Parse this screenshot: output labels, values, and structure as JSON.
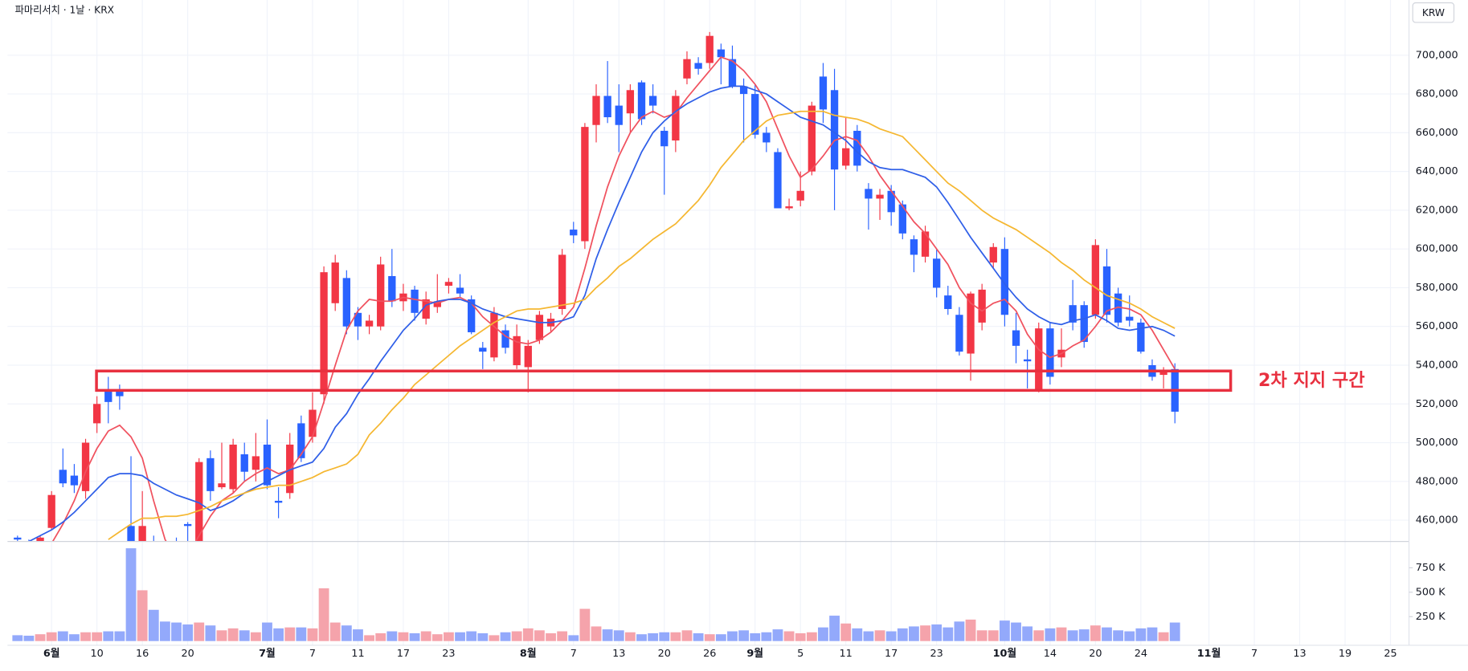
{
  "header": {
    "title": "파마리서치 · 1날 · KRX",
    "currency": "KRW"
  },
  "chart_data": {
    "type": "candlestick",
    "categories": [
      null,
      null,
      null,
      "6월",
      null,
      null,
      null,
      "10",
      null,
      null,
      null,
      "16",
      null,
      null,
      null,
      "20",
      null,
      null,
      null,
      null,
      null,
      null,
      "7월",
      null,
      null,
      null,
      "7",
      null,
      null,
      null,
      "11",
      null,
      null,
      null,
      "17",
      null,
      null,
      null,
      "23",
      null,
      null,
      null,
      null,
      null,
      null,
      "8월",
      null,
      null,
      null,
      "7",
      null,
      null,
      null,
      "13",
      null,
      null,
      null,
      "20",
      null,
      null,
      null,
      "26",
      null,
      null,
      null,
      "9월",
      null,
      null,
      null,
      "5",
      null,
      null,
      null,
      "11",
      null,
      null,
      null,
      "17",
      null,
      null,
      null,
      "23",
      null,
      null,
      null,
      null,
      null,
      "10월",
      null,
      null,
      null,
      "14",
      null,
      null,
      null,
      "20",
      null,
      null,
      null,
      "24",
      null,
      null,
      null,
      null,
      null,
      "11월",
      null,
      null,
      null,
      "7",
      null,
      null,
      null,
      "13",
      null,
      null,
      null,
      "19",
      null,
      null,
      null,
      "25"
    ],
    "open": [
      451000,
      449000,
      449000,
      456000,
      486000,
      483000,
      475000,
      510000,
      527000,
      527000,
      457000,
      445000,
      448000,
      440000,
      449000,
      458000,
      449000,
      492000,
      477000,
      476000,
      494000,
      486000,
      499000,
      470000,
      474000,
      510000,
      503000,
      525000,
      572000,
      585000,
      567000,
      560000,
      560000,
      586000,
      573000,
      579000,
      564000,
      570000,
      581000,
      580000,
      574000,
      549000,
      544000,
      558000,
      540000,
      539000,
      553000,
      560000,
      569000,
      610000,
      604000,
      664000,
      679000,
      674000,
      670000,
      686000,
      679000,
      661000,
      656000,
      688000,
      696000,
      696000,
      703000,
      698000,
      684000,
      680000,
      660000,
      650000,
      621000,
      625000,
      640000,
      689000,
      682000,
      643000,
      661000,
      631000,
      626000,
      630000,
      623000,
      605000,
      596000,
      595000,
      576000,
      566000,
      546000,
      562000,
      593000,
      600000,
      558000,
      543000,
      527000,
      559000,
      544000,
      571000,
      571000,
      566000,
      591000,
      577000,
      565000,
      562000,
      540000,
      535000,
      538000,
      null,
      null,
      null,
      null,
      null,
      null,
      null,
      null,
      null,
      null,
      null,
      null,
      null,
      null,
      null,
      null,
      null,
      null,
      null
    ],
    "high": [
      452000,
      450000,
      452000,
      475000,
      497000,
      489000,
      502000,
      524000,
      534000,
      530000,
      493000,
      475000,
      452000,
      447000,
      451000,
      459000,
      492000,
      496000,
      500000,
      502000,
      500000,
      505000,
      512000,
      477000,
      505000,
      514000,
      526000,
      591000,
      597000,
      589000,
      570000,
      566000,
      596000,
      600000,
      582000,
      581000,
      578000,
      587000,
      585000,
      587000,
      576000,
      552000,
      570000,
      561000,
      561000,
      553000,
      568000,
      567000,
      600000,
      614000,
      665000,
      685000,
      697000,
      685000,
      685000,
      687000,
      685000,
      663000,
      682000,
      702000,
      699000,
      712000,
      706000,
      705000,
      688000,
      685000,
      663000,
      652000,
      626000,
      640000,
      676000,
      696000,
      693000,
      668000,
      664000,
      634000,
      631000,
      633000,
      625000,
      607000,
      612000,
      600000,
      581000,
      570000,
      578000,
      582000,
      603000,
      606000,
      567000,
      548000,
      562000,
      562000,
      559000,
      584000,
      573000,
      605000,
      600000,
      580000,
      576000,
      564000,
      543000,
      539000,
      541000,
      null,
      null,
      null,
      null,
      null,
      null,
      null,
      null,
      null,
      null,
      null,
      null,
      null,
      null,
      null,
      null,
      null,
      null,
      null
    ],
    "low": [
      448000,
      446000,
      448000,
      455000,
      477000,
      474000,
      471000,
      505000,
      510000,
      517000,
      435000,
      440000,
      435000,
      432000,
      440000,
      445000,
      445000,
      470000,
      476000,
      474000,
      480000,
      480000,
      476000,
      461000,
      471000,
      490000,
      500000,
      520000,
      568000,
      556000,
      553000,
      556000,
      558000,
      570000,
      568000,
      563000,
      561000,
      567000,
      577000,
      575000,
      556000,
      538000,
      542000,
      546000,
      538000,
      526000,
      551000,
      557000,
      566000,
      603000,
      600000,
      655000,
      665000,
      650000,
      660000,
      664000,
      670000,
      628000,
      650000,
      685000,
      690000,
      693000,
      685000,
      683000,
      655000,
      657000,
      650000,
      621000,
      620000,
      622000,
      638000,
      665000,
      620000,
      641000,
      640000,
      610000,
      615000,
      612000,
      605000,
      588000,
      593000,
      575000,
      566000,
      545000,
      532000,
      558000,
      590000,
      560000,
      541000,
      528000,
      526000,
      530000,
      539000,
      558000,
      549000,
      564000,
      562000,
      560000,
      560000,
      546000,
      532000,
      528000,
      510000,
      null,
      null,
      null,
      null,
      null,
      null,
      null,
      null,
      null,
      null,
      null,
      null,
      null,
      null,
      null,
      null,
      null,
      null,
      null
    ],
    "close": [
      450000,
      448000,
      451000,
      473000,
      479000,
      478000,
      500000,
      520000,
      521000,
      524000,
      440000,
      457000,
      440000,
      435000,
      446000,
      457000,
      490000,
      475000,
      479000,
      499000,
      485000,
      493000,
      478000,
      469000,
      499000,
      492000,
      517000,
      588000,
      593000,
      560000,
      560000,
      563000,
      592000,
      573000,
      577000,
      567000,
      574000,
      573000,
      583000,
      577000,
      557000,
      547000,
      567000,
      549000,
      555000,
      550000,
      566000,
      564000,
      597000,
      607000,
      663000,
      679000,
      668000,
      664000,
      682000,
      667000,
      674000,
      653000,
      679000,
      698000,
      693000,
      710000,
      699000,
      684000,
      680000,
      659000,
      655000,
      621000,
      622000,
      630000,
      674000,
      672000,
      641000,
      652000,
      643000,
      626000,
      628000,
      619000,
      608000,
      597000,
      609000,
      580000,
      569000,
      547000,
      577000,
      579000,
      601000,
      566000,
      550000,
      542000,
      559000,
      534000,
      548000,
      562000,
      552000,
      602000,
      566000,
      562000,
      563000,
      547000,
      534000,
      537000,
      516000,
      null,
      null,
      null,
      null,
      null,
      null,
      null,
      null,
      null,
      null,
      null,
      null,
      null,
      null,
      null,
      null,
      null,
      null,
      null
    ],
    "volume": [
      60000,
      55000,
      70000,
      90000,
      100000,
      70000,
      90000,
      90000,
      100000,
      100000,
      950000,
      520000,
      320000,
      200000,
      190000,
      170000,
      190000,
      160000,
      110000,
      130000,
      110000,
      90000,
      190000,
      130000,
      140000,
      140000,
      130000,
      540000,
      190000,
      160000,
      120000,
      60000,
      80000,
      100000,
      90000,
      80000,
      100000,
      70000,
      90000,
      90000,
      100000,
      80000,
      60000,
      90000,
      100000,
      130000,
      110000,
      80000,
      100000,
      60000,
      330000,
      150000,
      120000,
      110000,
      90000,
      70000,
      80000,
      90000,
      90000,
      110000,
      80000,
      70000,
      70000,
      100000,
      110000,
      80000,
      90000,
      120000,
      100000,
      80000,
      90000,
      140000,
      260000,
      180000,
      130000,
      100000,
      110000,
      100000,
      130000,
      150000,
      160000,
      170000,
      140000,
      200000,
      220000,
      110000,
      110000,
      210000,
      190000,
      150000,
      110000,
      130000,
      140000,
      110000,
      120000,
      160000,
      140000,
      110000,
      100000,
      130000,
      140000,
      90000,
      190000,
      null,
      null,
      null,
      null,
      null,
      null,
      null,
      null,
      null,
      null,
      null,
      null,
      null,
      null,
      null,
      null,
      null,
      null,
      null
    ],
    "lines": [
      {
        "color": "#f0525f",
        "values": [
          null,
          null,
          null,
          448000,
          458000,
          470000,
          485000,
          497000,
          506000,
          509000,
          503000,
          492000,
          470000,
          450000,
          440000,
          442000,
          452000,
          462000,
          470000,
          474000,
          480000,
          484000,
          487000,
          484000,
          486000,
          494000,
          503000,
          521000,
          540000,
          558000,
          568000,
          574000,
          573000,
          573000,
          575000,
          574000,
          573000,
          572000,
          574000,
          575000,
          572000,
          565000,
          560000,
          555000,
          552000,
          551000,
          553000,
          557000,
          563000,
          570000,
          590000,
          612000,
          632000,
          648000,
          660000,
          668000,
          671000,
          668000,
          670000,
          678000,
          685000,
          692000,
          699000,
          697000,
          692000,
          685000,
          676000,
          662000,
          648000,
          637000,
          641000,
          648000,
          656000,
          658000,
          656000,
          648000,
          638000,
          630000,
          622000,
          614000,
          608000,
          600000,
          592000,
          580000,
          572000,
          568000,
          572000,
          574000,
          568000,
          556000,
          548000,
          544000,
          546000,
          550000,
          553000,
          560000,
          568000,
          570000,
          569000,
          566000,
          558000,
          548000,
          538000,
          null,
          null,
          null,
          null,
          null,
          null,
          null,
          null,
          null,
          null,
          null,
          null,
          null,
          null,
          null,
          null,
          null,
          null,
          null
        ]
      },
      {
        "color": "#2f5fe8",
        "values": [
          null,
          449000,
          452000,
          455000,
          459000,
          464000,
          470000,
          476000,
          482000,
          484000,
          484000,
          483000,
          479000,
          476000,
          473000,
          471000,
          469000,
          465000,
          467000,
          470000,
          474000,
          477000,
          480000,
          483000,
          486000,
          488000,
          490000,
          497000,
          508000,
          515000,
          525000,
          533000,
          542000,
          550000,
          558000,
          564000,
          571000,
          573000,
          574000,
          574000,
          572000,
          569000,
          567000,
          565000,
          564000,
          563000,
          562000,
          562000,
          563000,
          565000,
          576000,
          595000,
          610000,
          624000,
          637000,
          650000,
          660000,
          666000,
          671000,
          675000,
          678000,
          681000,
          683000,
          684000,
          684000,
          682000,
          680000,
          676000,
          672000,
          668000,
          666000,
          664000,
          660000,
          656000,
          650000,
          645000,
          642000,
          641000,
          641000,
          639000,
          637000,
          632000,
          624000,
          615000,
          606000,
          598000,
          590000,
          582000,
          575000,
          569000,
          565000,
          562000,
          561000,
          563000,
          564000,
          566000,
          563000,
          559000,
          558000,
          559000,
          560000,
          558000,
          555000,
          null,
          null,
          null,
          null,
          null,
          null,
          null,
          null,
          null,
          null,
          null,
          null,
          null,
          null,
          null,
          null,
          null,
          null,
          null
        ]
      },
      {
        "color": "#f5b731",
        "values": [
          null,
          null,
          null,
          null,
          null,
          null,
          null,
          null,
          450000,
          454000,
          458000,
          461000,
          461000,
          462000,
          462000,
          463000,
          465000,
          467000,
          470000,
          472000,
          474000,
          476000,
          477000,
          478000,
          478000,
          480000,
          482000,
          485000,
          487000,
          489000,
          494000,
          504000,
          510000,
          517000,
          523000,
          530000,
          535000,
          540000,
          545000,
          550000,
          554000,
          558000,
          562000,
          565000,
          568000,
          569000,
          569000,
          570000,
          571000,
          572000,
          574000,
          580000,
          585000,
          591000,
          595000,
          600000,
          605000,
          609000,
          613000,
          619000,
          625000,
          633000,
          642000,
          649000,
          656000,
          661000,
          666000,
          669000,
          670000,
          671000,
          671000,
          671000,
          669000,
          668000,
          667000,
          665000,
          662000,
          660000,
          658000,
          652000,
          646000,
          640000,
          634000,
          630000,
          625000,
          620000,
          616000,
          613000,
          610000,
          606000,
          602000,
          598000,
          593000,
          589000,
          584000,
          580000,
          576000,
          574000,
          572000,
          569000,
          565000,
          562000,
          559000,
          null,
          null,
          null,
          null,
          null,
          null,
          null,
          null,
          null,
          null,
          null,
          null,
          null,
          null,
          null,
          null,
          null,
          null,
          null
        ]
      }
    ],
    "up_color": "#f23645",
    "down_color": "#2962ff",
    "volume_up_color": "#f5a3ab",
    "volume_down_color": "#93a9fb",
    "ylim": [
      449000,
      729000
    ],
    "yticks": [
      {
        "value": 460000,
        "label": "460,000"
      },
      {
        "value": 480000,
        "label": "480,000"
      },
      {
        "value": 500000,
        "label": "500,000"
      },
      {
        "value": 520000,
        "label": "520,000"
      },
      {
        "value": 540000,
        "label": "540,000"
      },
      {
        "value": 560000,
        "label": "560,000"
      },
      {
        "value": 580000,
        "label": "580,000"
      },
      {
        "value": 600000,
        "label": "600,000"
      },
      {
        "value": 620000,
        "label": "620,000"
      },
      {
        "value": 640000,
        "label": "640,000"
      },
      {
        "value": 660000,
        "label": "660,000"
      },
      {
        "value": 680000,
        "label": "680,000"
      },
      {
        "value": 700000,
        "label": "700,000"
      }
    ],
    "volume_ylim": [
      0,
      1010000
    ],
    "volume_ticks": [
      {
        "value": 250000,
        "label": "250 K"
      },
      {
        "value": 500000,
        "label": "500 K"
      },
      {
        "value": 750000,
        "label": "750 K"
      }
    ],
    "grid": true,
    "annotation": {
      "text": "2차 지지 구간",
      "range": [
        527000,
        537000
      ],
      "color": "#e8303f"
    }
  }
}
